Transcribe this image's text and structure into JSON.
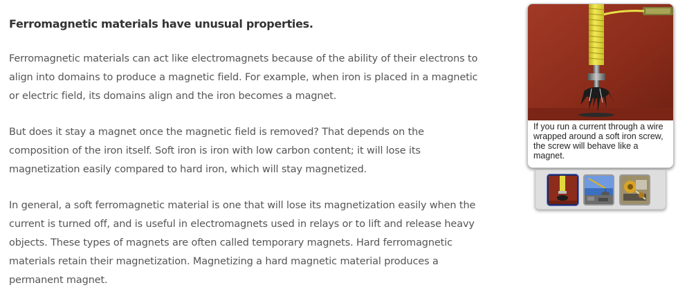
{
  "article": {
    "heading": "Ferromagnetic materials have unusual properties.",
    "paragraphs": [
      "Ferromagnetic materials can act like electromagnets because of the ability of their electrons to align into domains to produce a magnetic field. For example, when iron is placed in a magnetic or electric field, its domains align and the iron becomes a magnet.",
      "But does it stay a magnet once the magnetic field is removed? That depends on the composition of the iron itself. Soft iron is iron with low carbon content; it will lose its magnetization easily compared to hard iron, which will stay magnetized.",
      "In general, a soft ferromagnetic material is one that will lose its magnetization easily when the current is turned off, and is useful in electromagnets used in relays or to lift and release heavy objects. These types of magnets are often called temporary magnets. Hard ferromagnetic materials retain their magnetization. Magnetizing a hard magnetic material produces a permanent magnet."
    ]
  },
  "media": {
    "caption": "If you run a current through a wire wrapped around a soft iron screw, the screw will behave like a magnet.",
    "photo_icon": "electromagnet-screw-photo",
    "thumbnails": [
      {
        "name": "thumbnail-electromagnet-screw",
        "active": true
      },
      {
        "name": "thumbnail-junkyard-crane",
        "active": false
      },
      {
        "name": "thumbnail-relay-machine",
        "active": false
      }
    ],
    "colors": {
      "photo_background": "#8e2e1d",
      "coil": "#e8de3a",
      "active_thumb_border": "#1b2a6b"
    }
  }
}
